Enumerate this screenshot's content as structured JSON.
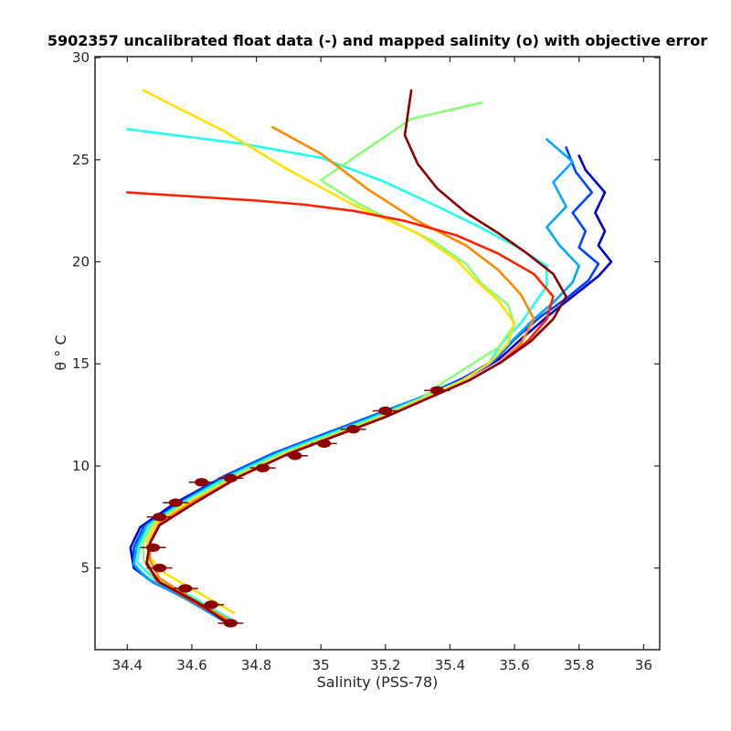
{
  "chart_data": {
    "type": "line",
    "title": "5902357 uncalibrated float data (-) and mapped salinity (o) with objective error",
    "xlabel": "Salinity (PSS-78)",
    "ylabel": "θ ° C",
    "xlim": [
      34.3,
      36.05
    ],
    "ylim": [
      1,
      30.05
    ],
    "xticks": [
      "34.4",
      "34.6",
      "34.8",
      "35",
      "35.2",
      "35.4",
      "35.6",
      "35.8",
      "36"
    ],
    "yticks": [
      "5",
      "10",
      "15",
      "20",
      "25",
      "30"
    ],
    "grid": false,
    "colormap": [
      "#00007f",
      "#0000ff",
      "#007fff",
      "#00ffff",
      "#7fff7f",
      "#ffff00",
      "#ff7f00",
      "#ff0000",
      "#7f0000"
    ],
    "series": [
      {
        "color": "#0000cd",
        "x": [
          34.72,
          34.6,
          34.48,
          34.42,
          34.41,
          34.44,
          34.55,
          34.7,
          34.85,
          35.0,
          35.15,
          35.3,
          35.45,
          35.55,
          35.62,
          35.7,
          35.78,
          35.86,
          35.9,
          35.86,
          35.88,
          35.85,
          35.88,
          35.82,
          35.8
        ],
        "y": [
          2.2,
          3.4,
          4.3,
          5.0,
          6.0,
          7.0,
          8.2,
          9.5,
          10.6,
          11.5,
          12.4,
          13.3,
          14.3,
          15.2,
          16.2,
          17.3,
          18.3,
          19.3,
          20.0,
          20.8,
          21.5,
          22.4,
          23.4,
          24.5,
          25.2
        ]
      },
      {
        "color": "#0044ff",
        "x": [
          34.71,
          34.58,
          34.47,
          34.42,
          34.42,
          34.45,
          34.56,
          34.7,
          34.85,
          35.0,
          35.15,
          35.3,
          35.44,
          35.54,
          35.6,
          35.68,
          35.76,
          35.83,
          35.86,
          35.8,
          35.82,
          35.78,
          35.84,
          35.79,
          35.76
        ],
        "y": [
          2.3,
          3.5,
          4.4,
          5.1,
          6.0,
          7.0,
          8.2,
          9.5,
          10.6,
          11.5,
          12.4,
          13.3,
          14.3,
          15.2,
          16.2,
          17.3,
          18.2,
          19.1,
          19.9,
          20.7,
          21.5,
          22.4,
          23.4,
          24.4,
          25.6
        ]
      },
      {
        "color": "#00aaff",
        "x": [
          34.7,
          34.57,
          34.46,
          34.42,
          34.43,
          34.46,
          34.57,
          34.71,
          34.86,
          35.01,
          35.16,
          35.3,
          35.44,
          35.53,
          35.59,
          35.66,
          35.72,
          35.78,
          35.8,
          35.74,
          35.7,
          35.76,
          35.72,
          35.78,
          35.7
        ],
        "y": [
          2.4,
          3.6,
          4.5,
          5.2,
          6.1,
          7.1,
          8.2,
          9.5,
          10.6,
          11.5,
          12.4,
          13.3,
          14.2,
          15.1,
          16.1,
          17.2,
          18.0,
          19.0,
          19.8,
          20.8,
          21.7,
          22.7,
          23.9,
          24.9,
          26.0
        ]
      },
      {
        "color": "#22ffee",
        "x": [
          34.72,
          34.6,
          34.48,
          34.43,
          34.44,
          34.47,
          34.58,
          34.72,
          34.87,
          35.02,
          35.17,
          35.31,
          35.44,
          35.52,
          35.56,
          35.62,
          35.66,
          35.7,
          35.7,
          35.6,
          35.48,
          35.35,
          35.2,
          35.0,
          34.75,
          34.55,
          34.4
        ],
        "y": [
          2.5,
          3.6,
          4.5,
          5.3,
          6.2,
          7.1,
          8.3,
          9.5,
          10.6,
          11.5,
          12.4,
          13.3,
          14.2,
          15.0,
          16.0,
          17.0,
          17.9,
          18.8,
          19.8,
          20.8,
          21.8,
          22.8,
          23.9,
          25.1,
          25.8,
          26.2,
          26.5
        ]
      },
      {
        "color": "#88ff77",
        "x": [
          34.7,
          34.58,
          34.48,
          34.45,
          34.45,
          34.48,
          34.6,
          34.73,
          34.88,
          35.03,
          35.18,
          35.31,
          35.38,
          35.45,
          35.55,
          35.6,
          35.58,
          35.5,
          35.45,
          35.35,
          35.22,
          35.1,
          35.0,
          35.28,
          35.5
        ],
        "y": [
          2.6,
          3.7,
          4.6,
          5.4,
          6.3,
          7.2,
          8.3,
          9.5,
          10.6,
          11.5,
          12.4,
          13.3,
          14.1,
          14.8,
          15.8,
          16.9,
          17.9,
          18.9,
          19.9,
          21.0,
          22.0,
          23.0,
          24.0,
          27.0,
          27.8
        ]
      },
      {
        "color": "#ffe000",
        "x": [
          34.73,
          34.62,
          34.52,
          34.47,
          34.46,
          34.49,
          34.6,
          34.74,
          34.89,
          35.04,
          35.19,
          35.32,
          35.44,
          35.52,
          35.58,
          35.6,
          35.55,
          35.48,
          35.42,
          35.3,
          35.1,
          34.9,
          34.7,
          34.45
        ],
        "y": [
          2.8,
          3.8,
          4.7,
          5.5,
          6.3,
          7.2,
          8.3,
          9.5,
          10.6,
          11.5,
          12.4,
          13.3,
          14.2,
          15.0,
          16.0,
          17.0,
          18.1,
          19.1,
          20.1,
          21.4,
          22.8,
          24.5,
          26.4,
          28.4
        ]
      },
      {
        "color": "#ff8800",
        "x": [
          34.72,
          34.6,
          34.5,
          34.47,
          34.47,
          34.5,
          34.61,
          34.75,
          34.9,
          35.05,
          35.2,
          35.33,
          35.46,
          35.55,
          35.62,
          35.66,
          35.62,
          35.55,
          35.45,
          35.3,
          35.15,
          35.0,
          34.85
        ],
        "y": [
          2.4,
          3.5,
          4.5,
          5.4,
          6.3,
          7.2,
          8.3,
          9.5,
          10.6,
          11.5,
          12.4,
          13.3,
          14.2,
          15.0,
          16.0,
          17.2,
          18.4,
          19.6,
          20.8,
          22.0,
          23.5,
          25.3,
          26.6
        ]
      },
      {
        "color": "#ff2200",
        "x": [
          34.72,
          34.6,
          34.49,
          34.46,
          34.47,
          34.5,
          34.61,
          34.75,
          34.9,
          35.05,
          35.2,
          35.33,
          35.46,
          35.56,
          35.64,
          35.7,
          35.72,
          35.66,
          35.55,
          35.42,
          35.26,
          35.1,
          34.95,
          34.8,
          34.6,
          34.4
        ],
        "y": [
          2.3,
          3.4,
          4.4,
          5.3,
          6.2,
          7.1,
          8.2,
          9.5,
          10.6,
          11.5,
          12.4,
          13.3,
          14.2,
          15.1,
          16.1,
          17.2,
          18.3,
          19.4,
          20.4,
          21.3,
          22.0,
          22.5,
          22.8,
          23.0,
          23.2,
          23.4
        ]
      },
      {
        "color": "#8b0000",
        "x": [
          34.72,
          34.62,
          34.5,
          34.46,
          34.47,
          34.5,
          34.61,
          34.75,
          34.9,
          35.05,
          35.2,
          35.33,
          35.46,
          35.56,
          35.65,
          35.72,
          35.76,
          35.72,
          35.64,
          35.55,
          35.45,
          35.36,
          35.3,
          35.26,
          35.28
        ],
        "y": [
          2.2,
          3.3,
          4.3,
          5.2,
          6.2,
          7.1,
          8.2,
          9.5,
          10.6,
          11.5,
          12.4,
          13.3,
          14.2,
          15.1,
          16.1,
          17.2,
          18.3,
          19.4,
          20.4,
          21.4,
          22.4,
          23.6,
          24.8,
          26.2,
          28.4
        ]
      }
    ],
    "mapped_salinity": {
      "color": "#8b0000",
      "x": [
        34.72,
        34.66,
        34.58,
        34.5,
        34.48,
        34.5,
        34.55,
        34.63,
        34.72,
        34.82,
        34.92,
        35.01,
        35.1,
        35.2,
        35.36
      ],
      "y": [
        2.3,
        3.2,
        4.0,
        5.0,
        6.0,
        7.5,
        8.2,
        9.2,
        9.4,
        9.9,
        10.5,
        11.1,
        11.8,
        12.7,
        13.7
      ]
    }
  }
}
